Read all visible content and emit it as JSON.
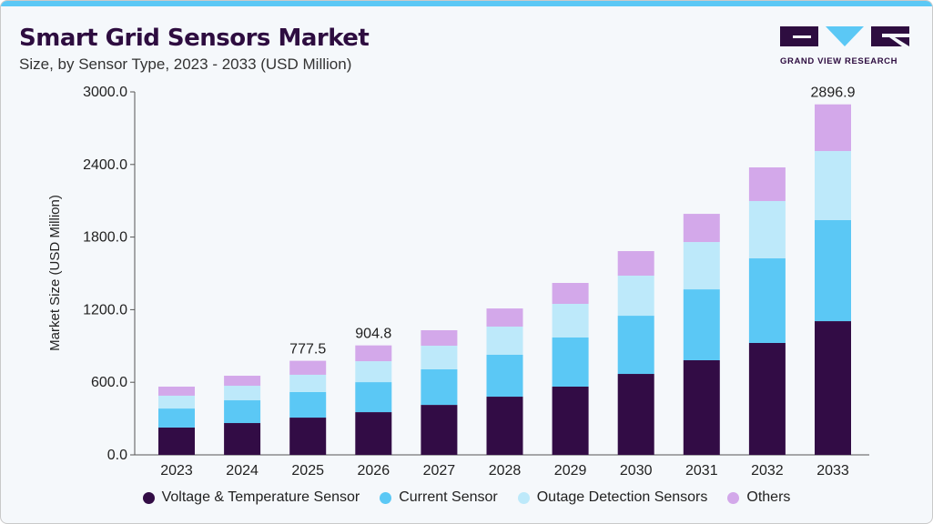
{
  "header": {
    "title": "Smart Grid Sensors Market",
    "subtitle": "Size, by Sensor Type, 2023 - 2033 (USD Million)",
    "logo_text": "GRAND VIEW RESEARCH"
  },
  "colors": {
    "accent": "#5bc8f5",
    "voltage": "#320c45",
    "current": "#5bc8f5",
    "outage": "#bde9fa",
    "others": "#d3a8ea"
  },
  "chart_data": {
    "type": "bar",
    "stacked": true,
    "title": "Smart Grid Sensors Market",
    "subtitle": "Size, by Sensor Type, 2023 - 2033 (USD Million)",
    "xlabel": "",
    "ylabel": "Market Size (USD Million)",
    "ylim": [
      0,
      3000
    ],
    "yticks": [
      "0.0",
      "600.0",
      "1200.0",
      "1800.0",
      "2400.0",
      "3000.0"
    ],
    "ytick_values": [
      0,
      600,
      1200,
      1800,
      2400,
      3000
    ],
    "grid": false,
    "legend_position": "bottom",
    "categories": [
      "2023",
      "2024",
      "2025",
      "2026",
      "2027",
      "2028",
      "2029",
      "2030",
      "2031",
      "2032",
      "2033"
    ],
    "series": [
      {
        "name": "Voltage & Temperature Sensor",
        "color": "#320c45",
        "values": [
          226,
          263,
          308,
          353,
          413,
          481,
          564,
          669,
          782,
          925,
          1105
        ]
      },
      {
        "name": "Current Sensor",
        "color": "#5bc8f5",
        "values": [
          157,
          188,
          211,
          248,
          294,
          346,
          406,
          481,
          586,
          699,
          835
        ]
      },
      {
        "name": "Outage Detection Sensors",
        "color": "#bde9fa",
        "values": [
          106,
          120,
          143,
          173,
          195,
          233,
          278,
          331,
          391,
          474,
          571
        ]
      },
      {
        "name": "Others",
        "color": "#d3a8ea",
        "values": [
          75,
          83,
          115.5,
          130.8,
          128,
          150,
          173,
          203,
          233,
          278,
          385.9
        ]
      }
    ],
    "annotations": [
      {
        "category": "2025",
        "label": "777.5"
      },
      {
        "category": "2026",
        "label": "904.8"
      },
      {
        "category": "2033",
        "label": "2896.9"
      }
    ]
  }
}
